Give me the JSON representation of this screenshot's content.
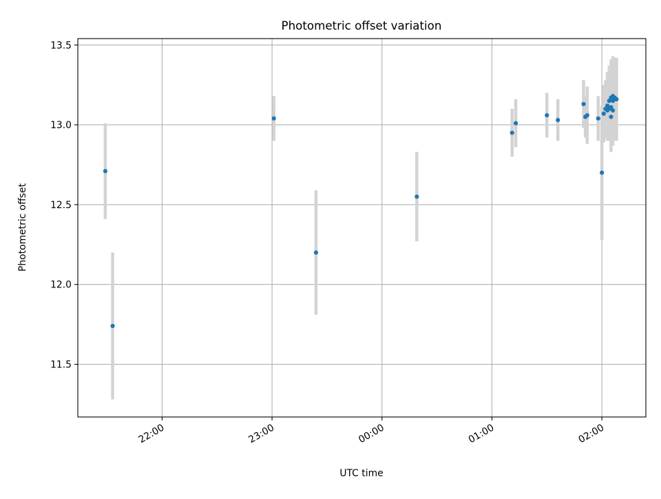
{
  "chart_data": {
    "type": "scatter",
    "title": "Photometric offset variation",
    "xlabel": "UTC time",
    "ylabel": "Photometric offset",
    "x_is_time": true,
    "xlim": [
      "21:14",
      "02:24"
    ],
    "ylim": [
      11.17,
      13.54
    ],
    "x_ticks": [
      "22:00",
      "23:00",
      "00:00",
      "01:00",
      "02:00"
    ],
    "y_ticks": [
      "11.5",
      "12.0",
      "12.5",
      "13.0",
      "13.5"
    ],
    "grid": true,
    "marker_color": "#1f77b4",
    "errorbar_color": "#d3d3d3",
    "points": [
      {
        "x": "21:29",
        "y": 12.71,
        "err": 0.3
      },
      {
        "x": "21:33",
        "y": 11.74,
        "err": 0.46
      },
      {
        "x": "23:01",
        "y": 13.04,
        "err": 0.14
      },
      {
        "x": "23:24",
        "y": 12.2,
        "err": 0.39
      },
      {
        "x": "00:19",
        "y": 12.55,
        "err": 0.28
      },
      {
        "x": "01:11",
        "y": 12.95,
        "err": 0.15
      },
      {
        "x": "01:13",
        "y": 13.01,
        "err": 0.15
      },
      {
        "x": "01:30",
        "y": 13.06,
        "err": 0.14
      },
      {
        "x": "01:36",
        "y": 13.03,
        "err": 0.13
      },
      {
        "x": "01:50",
        "y": 13.13,
        "err": 0.15
      },
      {
        "x": "01:51",
        "y": 13.05,
        "err": 0.13
      },
      {
        "x": "01:52",
        "y": 13.06,
        "err": 0.18
      },
      {
        "x": "01:58",
        "y": 13.04,
        "err": 0.14
      },
      {
        "x": "02:00",
        "y": 12.7,
        "err": 0.42
      },
      {
        "x": "02:01",
        "y": 13.07,
        "err": 0.18
      },
      {
        "x": "02:02",
        "y": 13.1,
        "err": 0.18
      },
      {
        "x": "02:03",
        "y": 13.09,
        "err": 0.19
      },
      {
        "x": "02:03",
        "y": 13.12,
        "err": 0.21
      },
      {
        "x": "02:04",
        "y": 13.15,
        "err": 0.22
      },
      {
        "x": "02:04",
        "y": 13.1,
        "err": 0.2
      },
      {
        "x": "02:05",
        "y": 13.05,
        "err": 0.22
      },
      {
        "x": "02:05",
        "y": 13.11,
        "err": 0.24
      },
      {
        "x": "02:05",
        "y": 13.17,
        "err": 0.24
      },
      {
        "x": "02:06",
        "y": 13.15,
        "err": 0.23
      },
      {
        "x": "02:06",
        "y": 13.09,
        "err": 0.22
      },
      {
        "x": "02:06",
        "y": 13.18,
        "err": 0.25
      },
      {
        "x": "02:07",
        "y": 13.16,
        "err": 0.26
      },
      {
        "x": "02:07",
        "y": 13.17,
        "err": 0.25
      },
      {
        "x": "02:08",
        "y": 13.16,
        "err": 0.26
      }
    ]
  }
}
